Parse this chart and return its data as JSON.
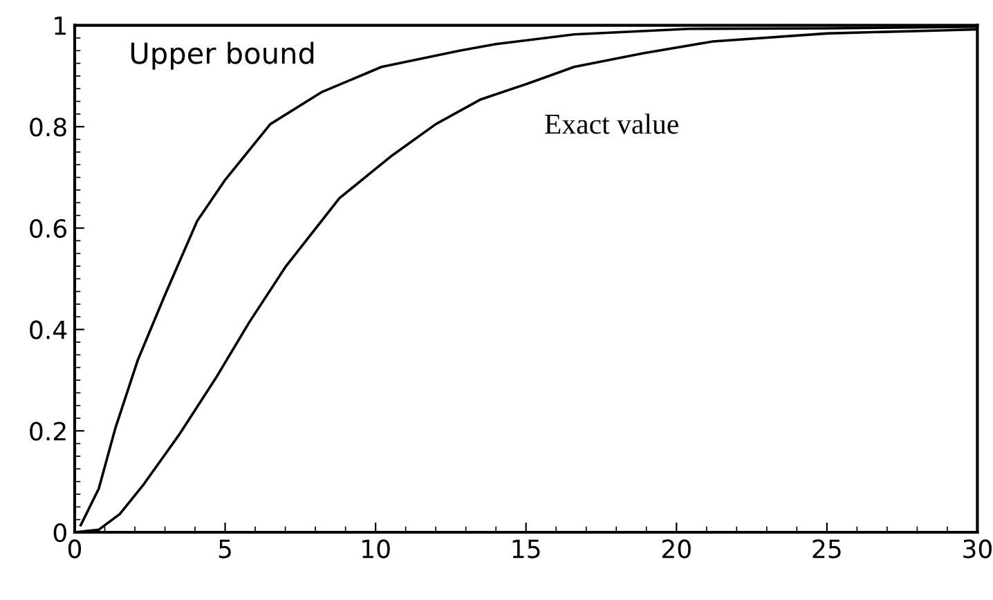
{
  "chart_data": {
    "type": "line",
    "xlim": [
      0,
      30
    ],
    "ylim": [
      0,
      1
    ],
    "xticks": [
      0,
      5,
      10,
      15,
      20,
      25,
      30
    ],
    "yticks": [
      0,
      0.2,
      0.4,
      0.6,
      0.8,
      1
    ],
    "grid": false,
    "legend": false,
    "marker": "none",
    "line_style": "solid",
    "series": [
      {
        "name": "Upper bound",
        "color": "#000000",
        "x": [
          0.2,
          0.8,
          1.35,
          2.1,
          3.0,
          4.07,
          5.0,
          6.5,
          8.2,
          10.2,
          12.8,
          14.0,
          16.6,
          20.4,
          25,
          30
        ],
        "values": [
          0.014,
          0.086,
          0.205,
          0.34,
          0.468,
          0.614,
          0.695,
          0.805,
          0.868,
          0.918,
          0.95,
          0.963,
          0.982,
          0.993,
          0.994,
          0.997
        ]
      },
      {
        "name": "Exact value",
        "color": "#000000",
        "x": [
          0,
          0.8,
          1.5,
          2.3,
          3.5,
          4.7,
          5.8,
          7.0,
          8.8,
          10.5,
          12.0,
          13.5,
          15.1,
          16.6,
          18.9,
          21.2,
          25,
          28.8,
          30
        ],
        "values": [
          0,
          0.005,
          0.036,
          0.095,
          0.195,
          0.305,
          0.414,
          0.523,
          0.659,
          0.741,
          0.805,
          0.854,
          0.886,
          0.918,
          0.945,
          0.968,
          0.984,
          0.99,
          0.992
        ]
      }
    ]
  }
}
